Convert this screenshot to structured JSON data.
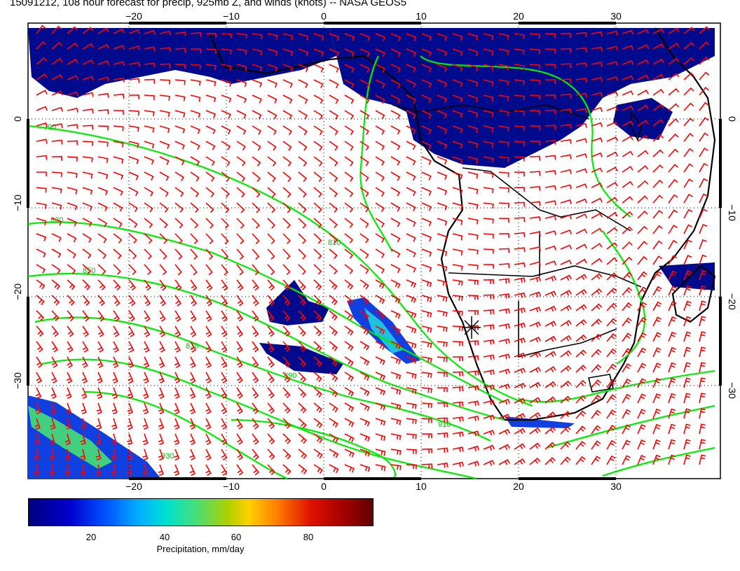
{
  "title": "15091212, 108 hour forecast for precip, 925mb Z, and winds (knots) -- NASA GEOS5",
  "map": {
    "lon_ticks": [
      "−20",
      "−10",
      "0",
      "10",
      "20",
      "30"
    ],
    "lat_ticks": [
      "0",
      "−10",
      "−20",
      "−30"
    ],
    "contour_labels": [
      "790",
      "830",
      "850",
      "870",
      "890",
      "910",
      "930",
      "810"
    ],
    "colors": {
      "precip_dark": "#000a8c",
      "precip_mid": "#1040e0",
      "contour": "#00ee00",
      "wind_barb": "#ff0000",
      "coast": "#000000",
      "land": "#ffffff"
    }
  },
  "colorbar": {
    "ticks": [
      "20",
      "40",
      "60",
      "80"
    ],
    "title": "Precipitation, mm/day"
  }
}
